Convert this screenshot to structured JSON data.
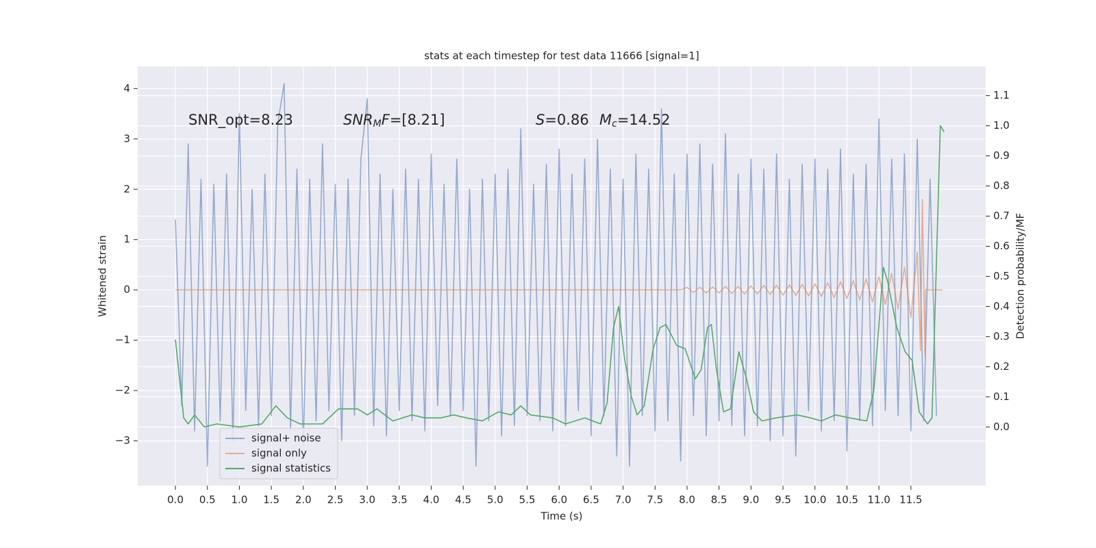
{
  "chart_data": {
    "type": "line",
    "title": "stats at each timestep for test data 11666 [signal=1]",
    "x_label": "Time (s)",
    "y_label": "Whitened strain",
    "y2_label": "Detection probability/MF",
    "xlim": [
      -0.59,
      12.67
    ],
    "ylim": [
      -3.89,
      4.44
    ],
    "y2lim": [
      -0.195,
      1.197
    ],
    "grid": true,
    "legend": "lower left",
    "xticks": [
      {
        "value": 0,
        "label": "0.0"
      },
      0.5,
      {
        "value": 1,
        "label": "1.0"
      },
      1.5,
      {
        "value": 2,
        "label": "2.0"
      },
      2.5,
      {
        "value": 3,
        "label": "3.0"
      },
      3.5,
      {
        "value": 4,
        "label": "4.0"
      },
      4.5,
      {
        "value": 5,
        "label": "5.0"
      },
      5.5,
      {
        "value": 6,
        "label": "6.0"
      },
      6.5,
      {
        "value": 7,
        "label": "7.0"
      },
      7.5,
      {
        "value": 8,
        "label": "8.0"
      },
      8.5,
      {
        "value": 9,
        "label": "9.0"
      },
      9.5,
      {
        "value": 10,
        "label": "10.0"
      },
      10.5,
      {
        "value": 11,
        "label": "11.0"
      },
      11.5
    ],
    "yticks": [
      {
        "value": -3,
        "label": "−3"
      },
      {
        "value": -2,
        "label": "−2"
      },
      {
        "value": -1,
        "label": "−1"
      },
      0,
      1,
      2,
      3,
      4
    ],
    "y2ticks": [
      {
        "value": 0,
        "label": "0.0"
      },
      0.1,
      0.2,
      0.3,
      0.4,
      0.5,
      0.6,
      0.7,
      0.8,
      0.9,
      {
        "value": 1,
        "label": "1.0"
      },
      1.1
    ],
    "annotations": [
      {
        "parts": [
          {
            "text": "SNR_opt=8.23"
          }
        ]
      },
      {
        "parts": [
          {
            "text": "SNR",
            "italic": true
          },
          {
            "text": "M",
            "italic": true,
            "sub": true
          },
          {
            "text": "F",
            "italic": true
          },
          {
            "text": "=[8.21]"
          }
        ]
      },
      {
        "parts": [
          {
            "text": "S",
            "italic": true
          },
          {
            "text": "=0.86"
          }
        ]
      },
      {
        "parts": [
          {
            "text": "M",
            "italic": true
          },
          {
            "text": "c",
            "italic": true,
            "sub": true
          },
          {
            "text": "=14.52"
          }
        ]
      }
    ],
    "series": [
      {
        "name": "signal+ noise",
        "color": "#4c72b0",
        "alpha": 0.55,
        "x": [
          0,
          0.1,
          0.2,
          0.3,
          0.4,
          0.5,
          0.6,
          0.7,
          0.8,
          0.9,
          1,
          1.1,
          1.2,
          1.3,
          1.4,
          1.5,
          1.6,
          1.7,
          1.8,
          1.9,
          2,
          2.1,
          2.2,
          2.3,
          2.4,
          2.5,
          2.6,
          2.7,
          2.8,
          2.9,
          3,
          3.1,
          3.2,
          3.3,
          3.4,
          3.5,
          3.6,
          3.7,
          3.8,
          3.9,
          4,
          4.1,
          4.2,
          4.3,
          4.4,
          4.5,
          4.6,
          4.7,
          4.8,
          4.9,
          5,
          5.1,
          5.2,
          5.3,
          5.4,
          5.5,
          5.6,
          5.7,
          5.8,
          5.9,
          6,
          6.1,
          6.2,
          6.3,
          6.4,
          6.5,
          6.6,
          6.7,
          6.8,
          6.9,
          7,
          7.1,
          7.2,
          7.3,
          7.4,
          7.5,
          7.6,
          7.7,
          7.8,
          7.9,
          8,
          8.1,
          8.2,
          8.3,
          8.4,
          8.5,
          8.6,
          8.7,
          8.8,
          8.9,
          9,
          9.1,
          9.2,
          9.3,
          9.4,
          9.5,
          9.6,
          9.7,
          9.8,
          9.9,
          10,
          10.1,
          10.2,
          10.3,
          10.4,
          10.5,
          10.6,
          10.7,
          10.8,
          10.9,
          11,
          11.1,
          11.2,
          11.3,
          11.4,
          11.5,
          11.6,
          11.7,
          11.8,
          11.9
        ],
        "values": [
          1.4,
          -2.3,
          2.9,
          -2.8,
          2.2,
          -3.5,
          2.1,
          -2.6,
          2.3,
          -3.0,
          3.5,
          -2.4,
          2.0,
          -2.7,
          2.3,
          -2.5,
          3.3,
          4.1,
          -2.8,
          2.4,
          -3.1,
          2.2,
          -2.6,
          2.9,
          -2.4,
          2.1,
          -3.0,
          2.2,
          -2.5,
          2.6,
          3.8,
          -2.7,
          2.3,
          -2.9,
          2.0,
          -2.4,
          2.4,
          -2.6,
          2.2,
          -2.8,
          2.7,
          -2.3,
          2.1,
          -2.5,
          2.6,
          -2.4,
          2.0,
          -3.5,
          2.2,
          -2.6,
          2.3,
          -2.9,
          2.4,
          -2.7,
          3.2,
          -2.5,
          2.1,
          -2.6,
          2.5,
          -2.8,
          2.8,
          -2.7,
          2.3,
          -2.4,
          2.6,
          -2.9,
          3.0,
          -2.5,
          2.4,
          -3.3,
          2.2,
          -3.5,
          2.7,
          -2.5,
          2.4,
          -2.8,
          3.6,
          -2.6,
          2.3,
          -3.4,
          2.7,
          -2.5,
          2.9,
          -2.9,
          2.5,
          -2.6,
          3.1,
          -2.7,
          2.3,
          -2.9,
          2.6,
          -2.7,
          2.4,
          -3.0,
          2.7,
          -2.9,
          2.2,
          -3.3,
          2.5,
          -2.4,
          2.6,
          -2.8,
          2.4,
          -2.6,
          2.8,
          -3.2,
          2.3,
          -2.6,
          2.5,
          -2.7,
          3.4,
          -2.4,
          2.6,
          -2.5,
          2.7,
          -2.8,
          3.0,
          -2.6,
          2.2,
          -2.5
        ]
      },
      {
        "name": "signal only",
        "color": "#dd8452",
        "alpha": 0.6,
        "x": [
          0,
          7.9,
          8.0,
          8.1,
          8.2,
          8.3,
          8.4,
          8.5,
          8.6,
          8.7,
          8.8,
          8.9,
          9.0,
          9.1,
          9.2,
          9.3,
          9.4,
          9.5,
          9.6,
          9.7,
          9.8,
          9.9,
          10.0,
          10.1,
          10.2,
          10.3,
          10.4,
          10.5,
          10.6,
          10.7,
          10.8,
          10.9,
          11.0,
          11.1,
          11.2,
          11.3,
          11.4,
          11.5,
          11.6,
          11.65,
          11.68,
          11.72,
          11.73,
          11.99
        ],
        "values": [
          0,
          0,
          0.05,
          -0.05,
          0.05,
          -0.06,
          0.06,
          -0.06,
          0.07,
          -0.07,
          0.07,
          -0.08,
          0.08,
          -0.08,
          0.09,
          -0.09,
          0.09,
          -0.1,
          0.1,
          -0.11,
          0.11,
          -0.12,
          0.12,
          -0.13,
          0.14,
          -0.15,
          0.16,
          -0.17,
          0.18,
          -0.2,
          0.22,
          -0.24,
          0.26,
          -0.29,
          0.33,
          -0.38,
          0.45,
          -0.55,
          0.75,
          -1.2,
          1.8,
          -1.3,
          0,
          0
        ]
      },
      {
        "name": "signal statistics",
        "color": "#55a868",
        "alpha": 1,
        "axis": "y2",
        "x": [
          0,
          0.13,
          0.2,
          0.3,
          0.45,
          0.65,
          1.0,
          1.35,
          1.57,
          1.75,
          1.95,
          2.3,
          2.55,
          2.85,
          3.0,
          3.15,
          3.4,
          3.7,
          3.9,
          4.15,
          4.35,
          4.55,
          4.8,
          5.05,
          5.25,
          5.4,
          5.55,
          5.9,
          6.1,
          6.4,
          6.65,
          6.75,
          6.85,
          6.93,
          7.02,
          7.13,
          7.22,
          7.33,
          7.47,
          7.58,
          7.67,
          7.84,
          7.97,
          8.13,
          8.22,
          8.32,
          8.38,
          8.46,
          8.57,
          8.68,
          8.81,
          8.93,
          9.04,
          9.17,
          9.39,
          9.72,
          9.93,
          10.1,
          10.32,
          10.54,
          10.81,
          10.92,
          11.07,
          11.14,
          11.28,
          11.41,
          11.52,
          11.63,
          11.76,
          11.83,
          11.96,
          12.02
        ],
        "values": [
          0.29,
          0.03,
          0.01,
          0.04,
          0.0,
          0.01,
          0.0,
          0.01,
          0.07,
          0.03,
          0.01,
          0.01,
          0.06,
          0.06,
          0.04,
          0.06,
          0.02,
          0.04,
          0.03,
          0.03,
          0.04,
          0.03,
          0.02,
          0.05,
          0.04,
          0.07,
          0.04,
          0.03,
          0.01,
          0.03,
          0.01,
          0.08,
          0.33,
          0.4,
          0.23,
          0.1,
          0.04,
          0.07,
          0.26,
          0.33,
          0.34,
          0.27,
          0.26,
          0.16,
          0.19,
          0.33,
          0.34,
          0.19,
          0.05,
          0.06,
          0.25,
          0.16,
          0.05,
          0.02,
          0.03,
          0.04,
          0.03,
          0.02,
          0.04,
          0.03,
          0.02,
          0.12,
          0.53,
          0.48,
          0.33,
          0.25,
          0.22,
          0.05,
          0.01,
          0.03,
          1.0,
          0.98
        ]
      }
    ]
  }
}
